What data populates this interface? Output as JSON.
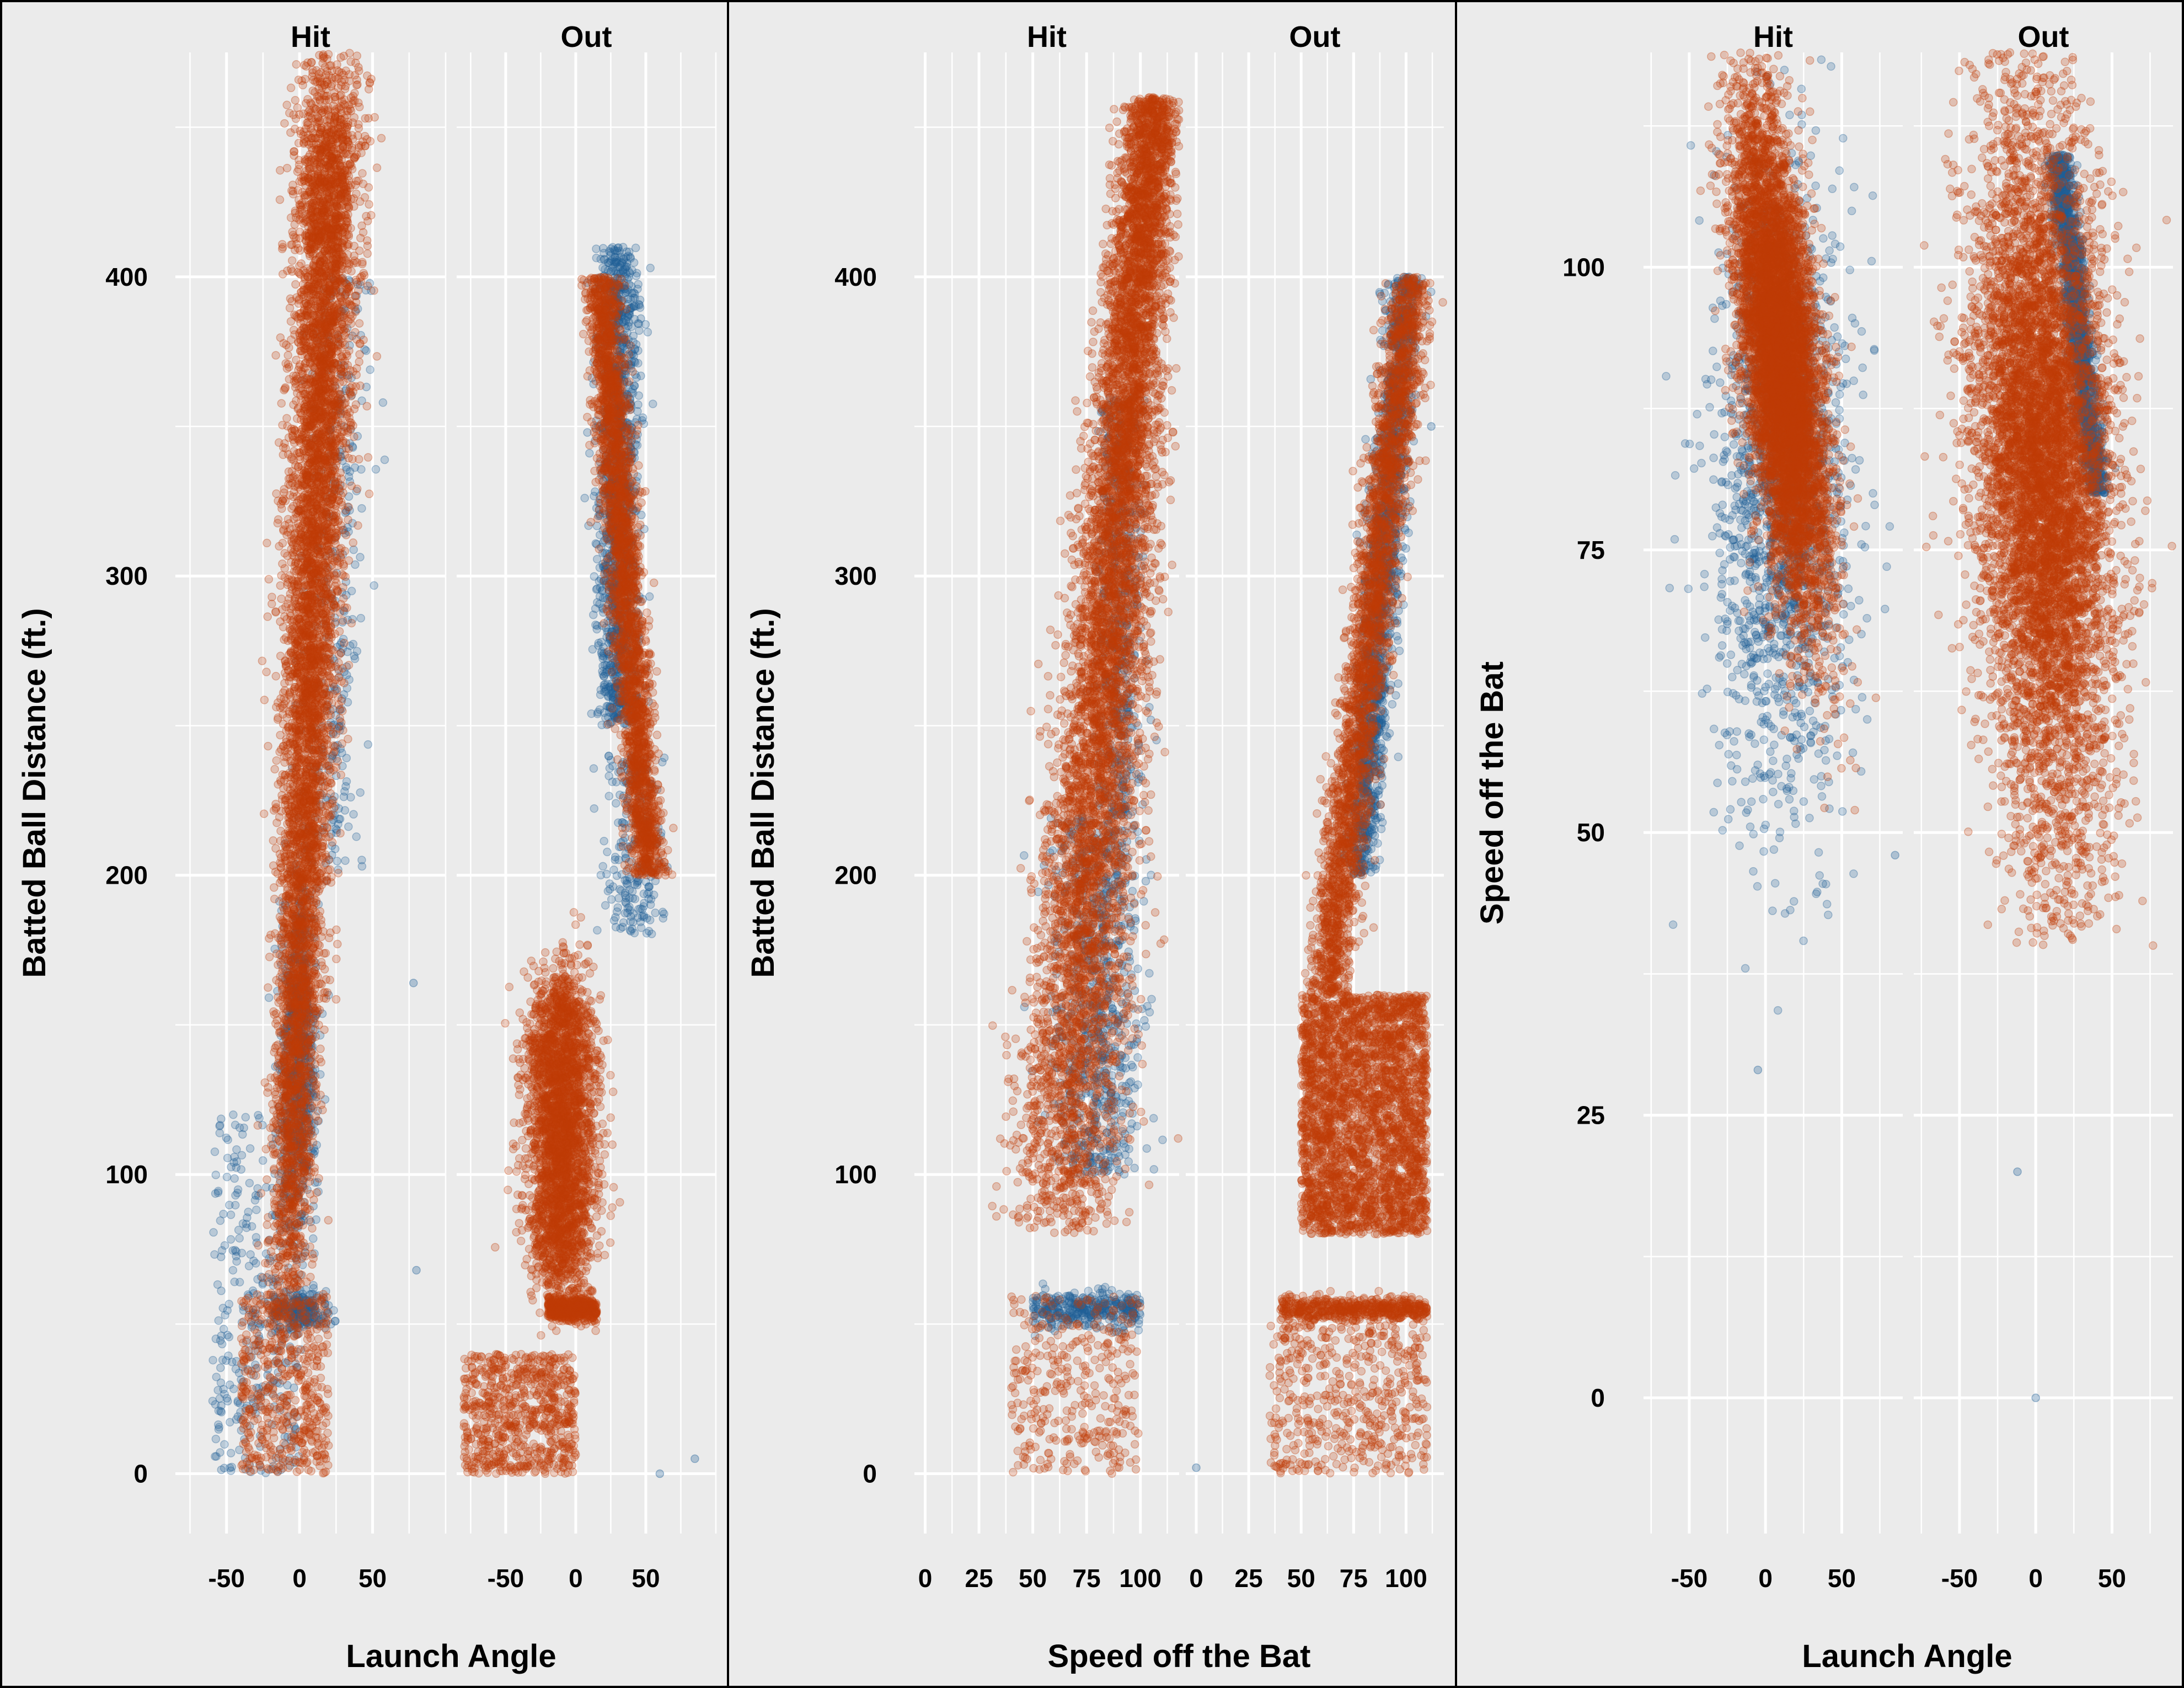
{
  "colors": {
    "background": "#ebebeb",
    "gridline": "#ffffff",
    "text": "#000000",
    "divider": "#000000"
  },
  "chart_data": [
    {
      "type": "scatter",
      "xlabel": "Launch Angle",
      "ylabel": "Batted Ball Distance (ft.)",
      "facets": [
        "Hit",
        "Out"
      ],
      "xlim": [
        -85,
        100
      ],
      "ylim": [
        -20,
        475
      ],
      "x_ticks": [
        -50,
        0,
        50
      ],
      "y_ticks": [
        0,
        100,
        200,
        300,
        400
      ],
      "grid": true,
      "point_alpha": 0.25,
      "series": [
        {
          "color": "#1f5e96",
          "point_count": 3200
        },
        {
          "color": "#c13c07",
          "point_count": 14000
        }
      ],
      "notable_points": [
        {
          "facet": "Hit",
          "x": -30,
          "y": 93
        },
        {
          "facet": "Hit",
          "x": 80,
          "y": 68
        },
        {
          "facet": "Hit",
          "x": 78,
          "y": 164
        },
        {
          "facet": "Out",
          "x": 60,
          "y": 0
        },
        {
          "facet": "Out",
          "x": 85,
          "y": 5
        }
      ]
    },
    {
      "type": "scatter",
      "xlabel": "Speed off the Bat",
      "ylabel": "Batted Ball Distance (ft.)",
      "facets": [
        "Hit",
        "Out"
      ],
      "xlim": [
        -5,
        118
      ],
      "ylim": [
        -20,
        475
      ],
      "x_ticks": [
        0,
        25,
        50,
        75,
        100
      ],
      "y_ticks": [
        0,
        100,
        200,
        300,
        400
      ],
      "grid": true,
      "point_alpha": 0.25,
      "series": [
        {
          "color": "#1f5e96",
          "point_count": 3200
        },
        {
          "color": "#c13c07",
          "point_count": 14000
        }
      ],
      "notable_points": [
        {
          "facet": "Out",
          "x": 0,
          "y": 2
        },
        {
          "facet": "Out",
          "x": 112,
          "y": 350
        }
      ]
    },
    {
      "type": "scatter",
      "xlabel": "Launch Angle",
      "ylabel": "Speed off the Bat",
      "facets": [
        "Hit",
        "Out"
      ],
      "xlim": [
        -80,
        90
      ],
      "ylim": [
        -12,
        119
      ],
      "x_ticks": [
        -50,
        0,
        50
      ],
      "y_ticks": [
        0,
        25,
        50,
        75,
        100
      ],
      "grid": true,
      "point_alpha": 0.25,
      "series": [
        {
          "color": "#1f5e96",
          "point_count": 3200
        },
        {
          "color": "#c13c07",
          "point_count": 14000
        }
      ],
      "notable_points": [
        {
          "facet": "Hit",
          "x": -5,
          "y": 29
        },
        {
          "facet": "Hit",
          "x": 85,
          "y": 48
        },
        {
          "facet": "Out",
          "x": 0,
          "y": 0
        },
        {
          "facet": "Out",
          "x": -12,
          "y": 20
        }
      ]
    }
  ]
}
